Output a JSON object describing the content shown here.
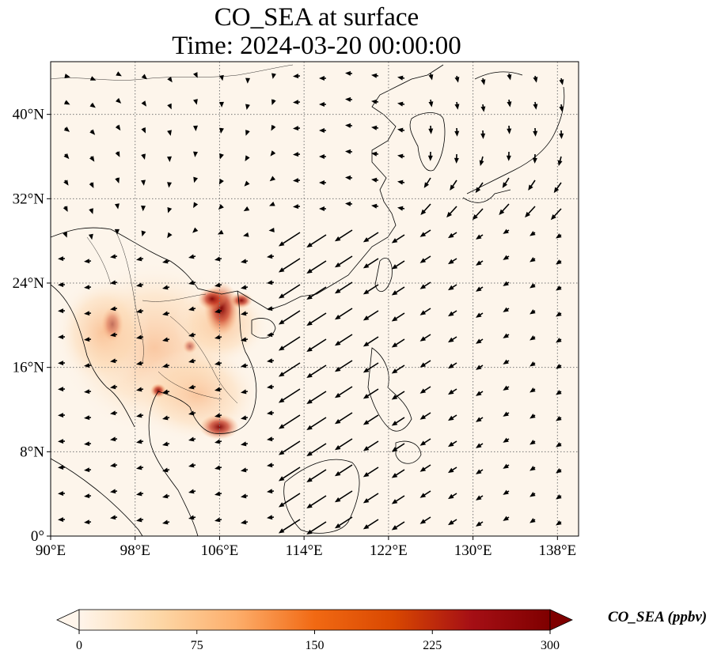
{
  "title": {
    "line1": "CO_SEA at surface",
    "line2": "Time: 2024-03-20 00:00:00"
  },
  "map": {
    "lon_range": [
      90,
      140
    ],
    "lat_range": [
      0,
      45
    ],
    "lon_ticks": [
      "90°E",
      "98°E",
      "106°E",
      "114°E",
      "122°E",
      "130°E",
      "138°E"
    ],
    "lat_ticks": [
      "0°",
      "8°N",
      "16°N",
      "24°N",
      "32°N",
      "40°N"
    ],
    "gridlines": true,
    "background_color": "#fdf5eb",
    "coastline_color": "#000000",
    "arrow_color": "#000000"
  },
  "colorbar": {
    "label": "CO_SEA (ppbv)",
    "ticks": [
      "0",
      "75",
      "150",
      "225",
      "300"
    ],
    "range": [
      0,
      300
    ],
    "colormap": [
      "#fff5eb",
      "#fdd8a8",
      "#fdae6b",
      "#f16913",
      "#d94801",
      "#a50f15",
      "#7f0000"
    ],
    "extend": "both"
  }
}
